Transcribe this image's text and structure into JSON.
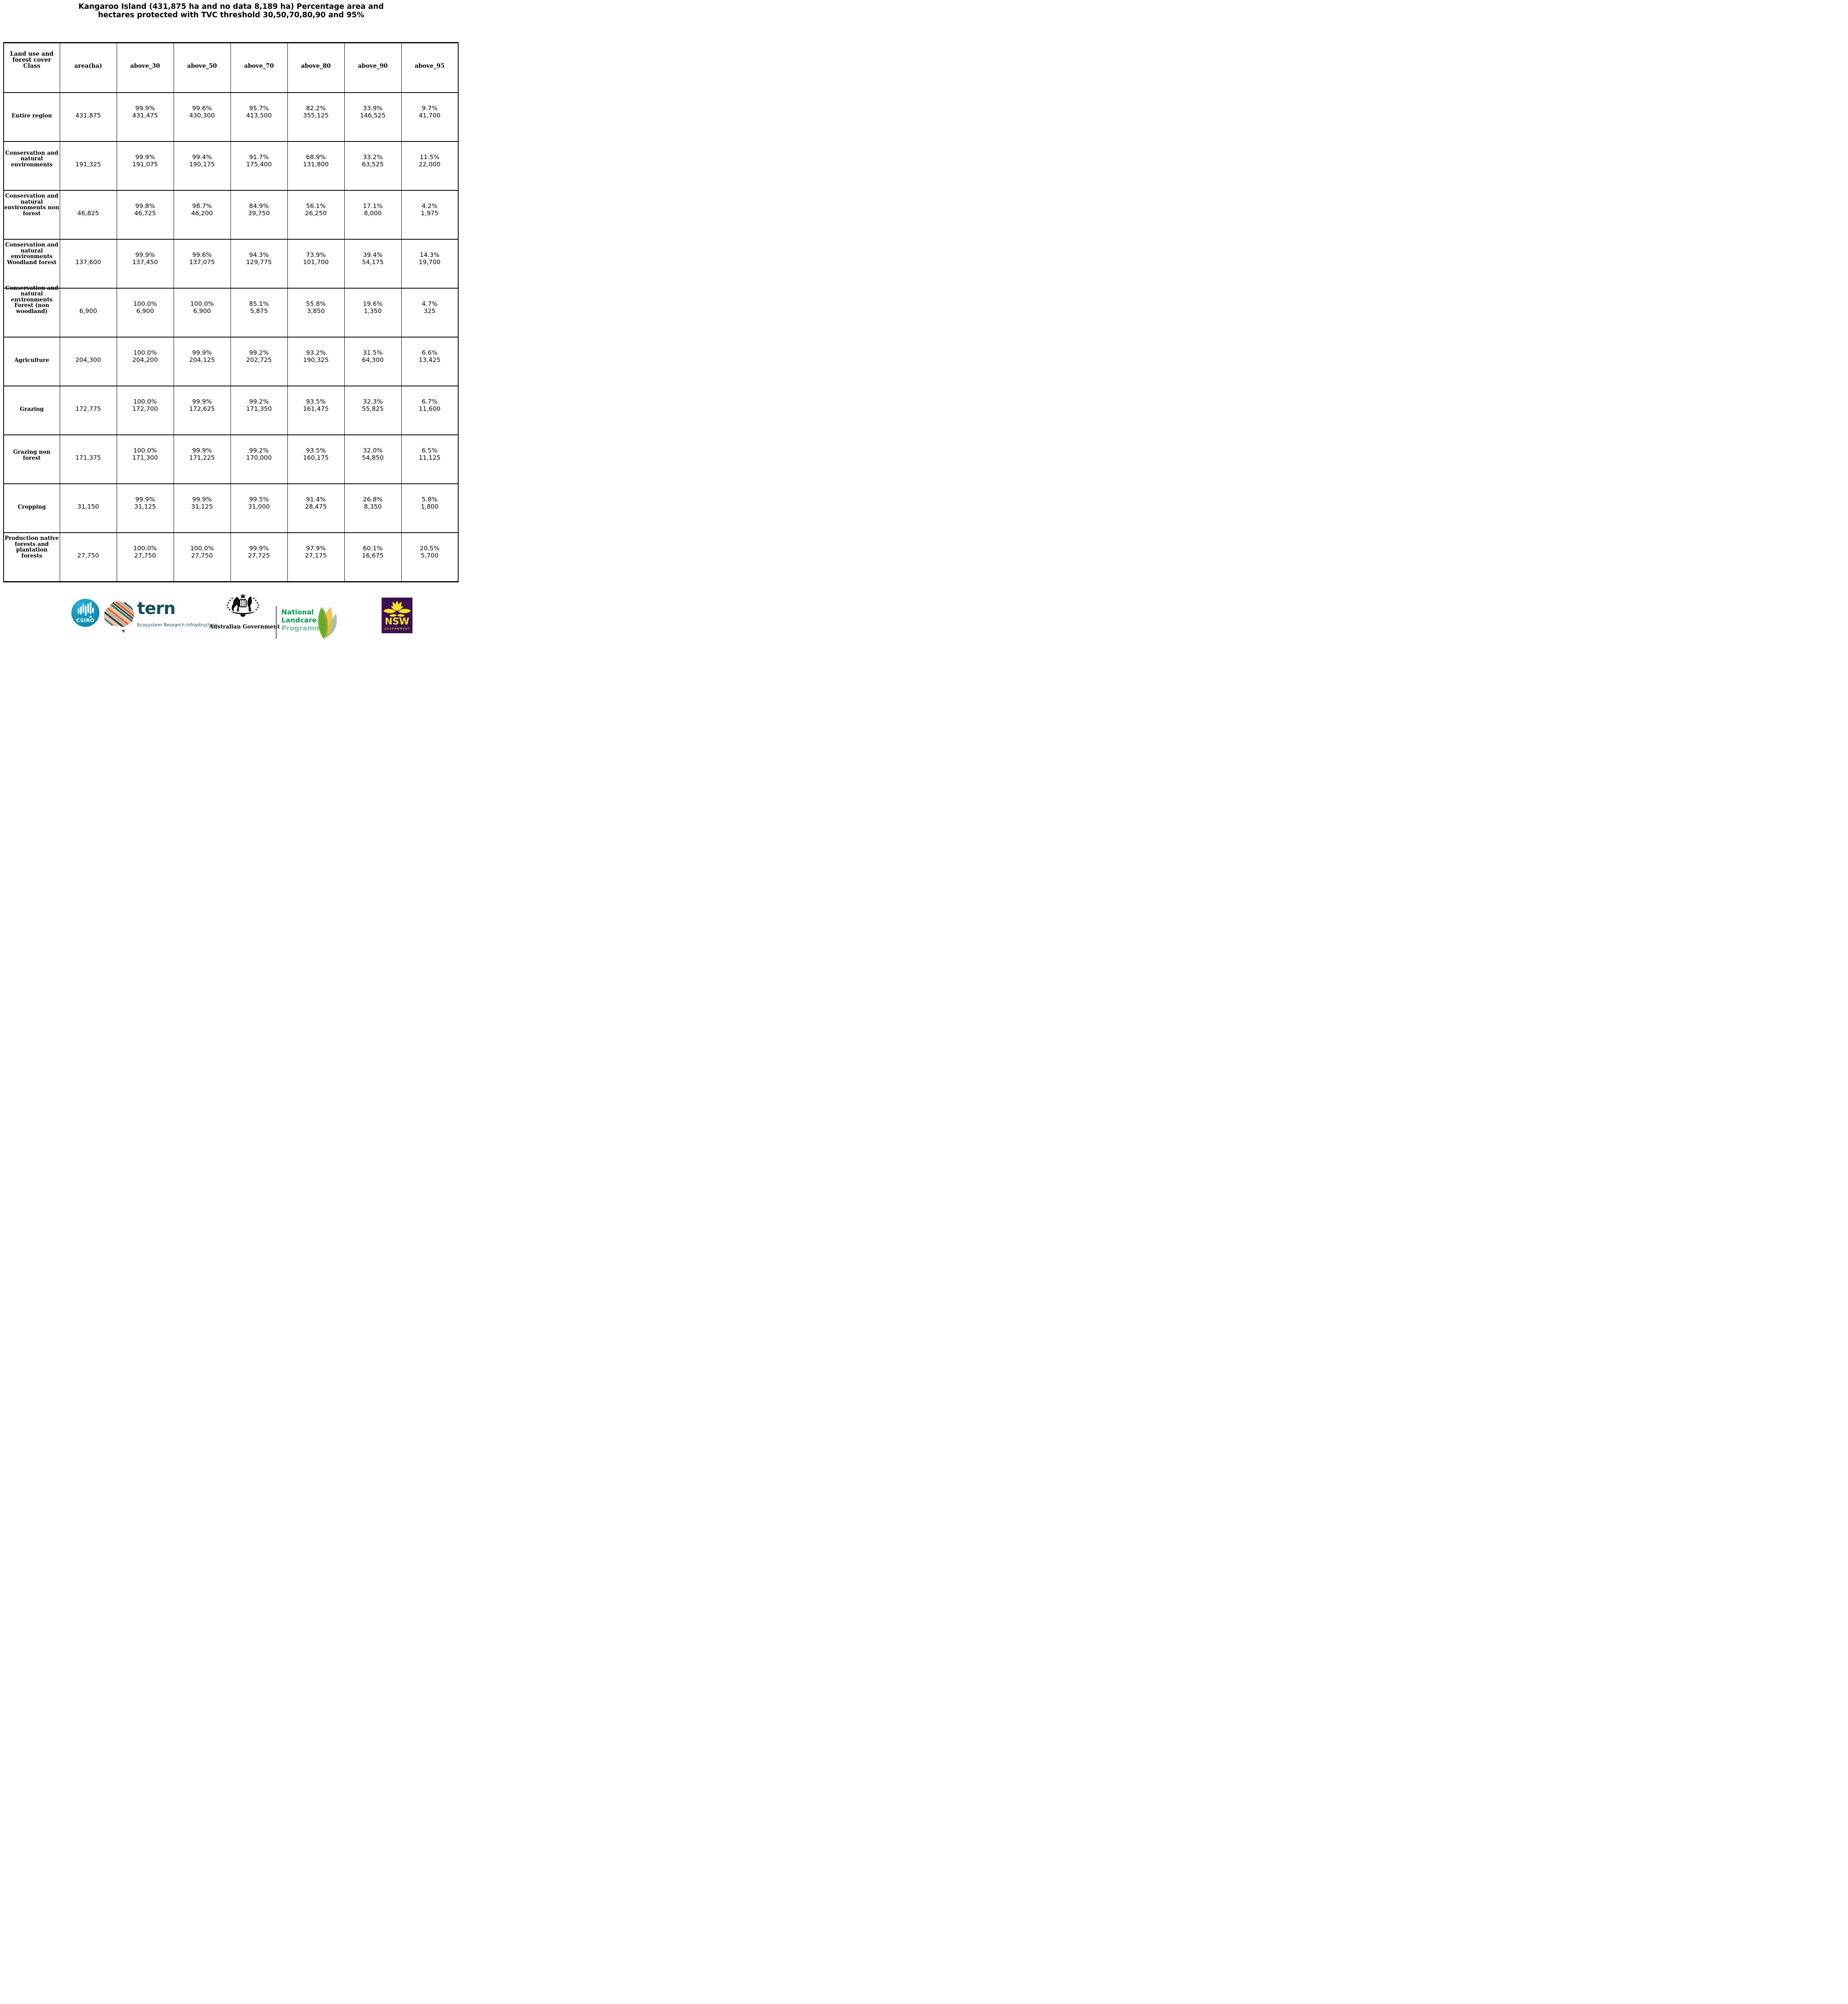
{
  "title": {
    "line1": "Kangaroo Island (431,875 ha and no data 8,189 ha) Percentage area and",
    "line2": "hectares protected with TVC threshold 30,50,70,80,90 and 95%"
  },
  "table": {
    "header": {
      "class_col": "Land use and\nforest cover\nClass",
      "cols": [
        "area(ha)",
        "above_30",
        "above_50",
        "above_70",
        "above_80",
        "above_90",
        "above_95"
      ]
    },
    "rows": [
      {
        "label": "Entire region",
        "area": "431,875",
        "pcts": [
          "99.9%",
          "99.6%",
          "95.7%",
          "82.2%",
          "33.9%",
          "9.7%"
        ],
        "has": [
          "431,475",
          "430,300",
          "413,500",
          "355,125",
          "146,525",
          "41,700"
        ]
      },
      {
        "label": "Conservation and\nnatural\nenvironments",
        "area": "191,325",
        "pcts": [
          "99.9%",
          "99.4%",
          "91.7%",
          "68.9%",
          "33.2%",
          "11.5%"
        ],
        "has": [
          "191,075",
          "190,175",
          "175,400",
          "131,800",
          "63,525",
          "22,000"
        ]
      },
      {
        "label": "Conservation and\nnatural\nenvironments non\nforest",
        "area": "46,825",
        "pcts": [
          "99.8%",
          "98.7%",
          "84.9%",
          "56.1%",
          "17.1%",
          "4.2%"
        ],
        "has": [
          "46,725",
          "46,200",
          "39,750",
          "26,250",
          "8,000",
          "1,975"
        ]
      },
      {
        "label": "Conservation and\nnatural\nenvironments\nWoodland forest",
        "area": "137,600",
        "pcts": [
          "99.9%",
          "99.6%",
          "94.3%",
          "73.9%",
          "39.4%",
          "14.3%"
        ],
        "has": [
          "137,450",
          "137,075",
          "129,775",
          "101,700",
          "54,175",
          "19,700"
        ]
      },
      {
        "label": "Conservation and\nnatural\nenvironments\nForest (non\nwoodland)",
        "area": "6,900",
        "pcts": [
          "100.0%",
          "100.0%",
          "85.1%",
          "55.8%",
          "19.6%",
          "4.7%"
        ],
        "has": [
          "6,900",
          "6,900",
          "5,875",
          "3,850",
          "1,350",
          "325"
        ]
      },
      {
        "label": "Agriculture",
        "area": "204,300",
        "pcts": [
          "100.0%",
          "99.9%",
          "99.2%",
          "93.2%",
          "31.5%",
          "6.6%"
        ],
        "has": [
          "204,200",
          "204,125",
          "202,725",
          "190,325",
          "64,300",
          "13,425"
        ]
      },
      {
        "label": "Grazing",
        "area": "172,775",
        "pcts": [
          "100.0%",
          "99.9%",
          "99.2%",
          "93.5%",
          "32.3%",
          "6.7%"
        ],
        "has": [
          "172,700",
          "172,625",
          "171,350",
          "161,475",
          "55,825",
          "11,600"
        ]
      },
      {
        "label": "Grazing non\nforest",
        "area": "171,375",
        "pcts": [
          "100.0%",
          "99.9%",
          "99.2%",
          "93.5%",
          "32.0%",
          "6.5%"
        ],
        "has": [
          "171,300",
          "171,225",
          "170,000",
          "160,175",
          "54,850",
          "11,125"
        ]
      },
      {
        "label": "Cropping",
        "area": "31,150",
        "pcts": [
          "99.9%",
          "99.9%",
          "99.5%",
          "91.4%",
          "26.8%",
          "5.8%"
        ],
        "has": [
          "31,125",
          "31,125",
          "31,000",
          "28,475",
          "8,350",
          "1,800"
        ]
      },
      {
        "label": "Production native\nforests and\nplantation\nforests",
        "area": "27,750",
        "pcts": [
          "100.0%",
          "100.0%",
          "99.9%",
          "97.9%",
          "60.1%",
          "20.5%"
        ],
        "has": [
          "27,750",
          "27,750",
          "27,725",
          "27,175",
          "16,675",
          "5,700"
        ]
      }
    ]
  },
  "footer": {
    "csiro": {
      "label": "CSIRO"
    },
    "tern": {
      "name": "tern",
      "tagline": "Ecosystem Research Infrastructure"
    },
    "aus_gov": {
      "label": "Australian Government"
    },
    "landcare": {
      "line1": "National",
      "line2": "Landcare",
      "line3": "Programme"
    },
    "nsw": {
      "name": "NSW",
      "sub": "GOVERNMENT"
    }
  },
  "colors": {
    "csiro_blue": "#1496bd",
    "tern_teal": "#194c59",
    "tern_orange": "#e05a39",
    "tern_peach": "#f1c49e",
    "landcare_green": "#00984f",
    "landcare_light_green": "#6cbc90",
    "nsw_purple": "#3b1150",
    "nsw_yellow": "#f7e324",
    "table_border": "#000000"
  }
}
